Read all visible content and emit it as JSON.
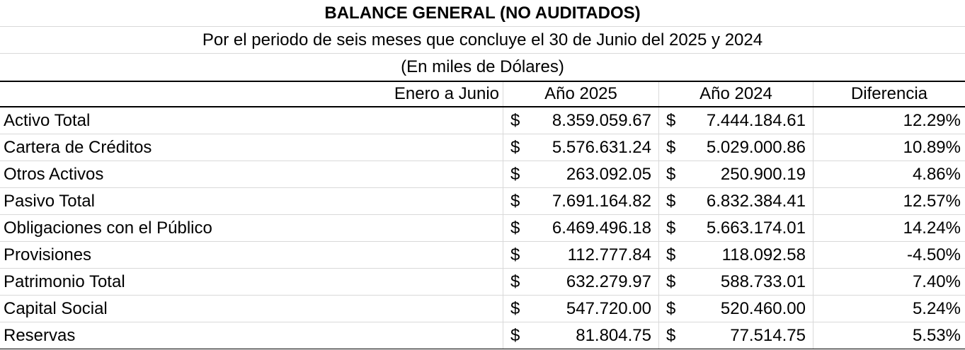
{
  "title": "BALANCE GENERAL (NO AUDITADOS)",
  "subtitle": "Por el periodo de seis meses que concluye el 30 de Junio del 2025 y 2024",
  "units": "(En miles de Dólares)",
  "header": {
    "period": "Enero a Junio",
    "year1": "Año 2025",
    "year2": "Año 2024",
    "diff": "Diferencia"
  },
  "currency_symbol": "$",
  "rows": [
    {
      "label": "Activo Total",
      "y2025": "8.359.059.67",
      "y2024": "7.444.184.61",
      "diff": "12.29%"
    },
    {
      "label": "Cartera de Créditos",
      "y2025": "5.576.631.24",
      "y2024": "5.029.000.86",
      "diff": "10.89%"
    },
    {
      "label": "Otros Activos",
      "y2025": "263.092.05",
      "y2024": "250.900.19",
      "diff": "4.86%"
    },
    {
      "label": "Pasivo Total",
      "y2025": "7.691.164.82",
      "y2024": "6.832.384.41",
      "diff": "12.57%"
    },
    {
      "label": "Obligaciones con el Público",
      "y2025": "6.469.496.18",
      "y2024": "5.663.174.01",
      "diff": "14.24%"
    },
    {
      "label": "Provisiones",
      "y2025": "112.777.84",
      "y2024": "118.092.58",
      "diff": "-4.50%"
    },
    {
      "label": "Patrimonio Total",
      "y2025": "632.279.97",
      "y2024": "588.733.01",
      "diff": "7.40%"
    },
    {
      "label": "Capital Social",
      "y2025": "547.720.00",
      "y2024": "520.460.00",
      "diff": "5.24%"
    },
    {
      "label": "Reservas",
      "y2025": "81.804.75",
      "y2024": "77.514.75",
      "diff": "5.53%"
    }
  ]
}
